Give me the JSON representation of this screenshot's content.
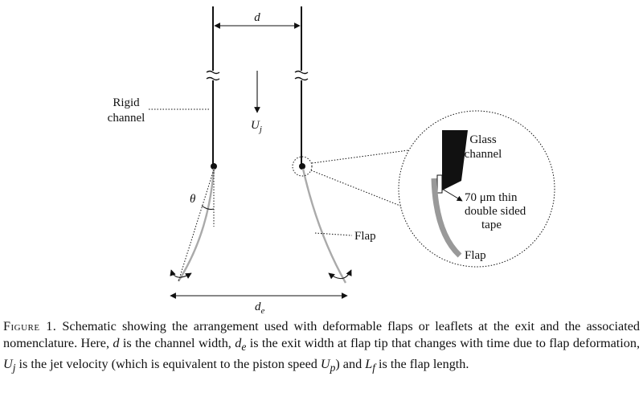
{
  "figure": {
    "labels": {
      "d": "d",
      "rigid_channel_1": "Rigid",
      "rigid_channel_2": "channel",
      "uj_main": "U",
      "uj_sub": "j",
      "theta": "θ",
      "flap": "Flap",
      "de_main": "d",
      "de_sub": "e",
      "glass_channel_1": "Glass",
      "glass_channel_2": "channel",
      "tape_1": "70 μm thin",
      "tape_2": "double sided",
      "tape_3": "tape",
      "inset_flap": "Flap"
    }
  },
  "caption": {
    "figure_label": "Figure 1.",
    "t1": " Schematic showing the arrangement used with deformable flaps or leaflets at the exit and the associated nomenclature. Here, ",
    "d": "d",
    "t2": " is the channel width, ",
    "de_main": "d",
    "de_sub": "e",
    "t3": " is the exit width at flap tip that changes with time due to flap deformation, ",
    "uj_main": "U",
    "uj_sub": "j",
    "t4": " is the jet velocity (which is equivalent to the piston speed ",
    "up_main": "U",
    "up_sub": "p",
    "t5": ") and ",
    "lf_main": "L",
    "lf_sub": "f",
    "t6": " is the flap length."
  }
}
